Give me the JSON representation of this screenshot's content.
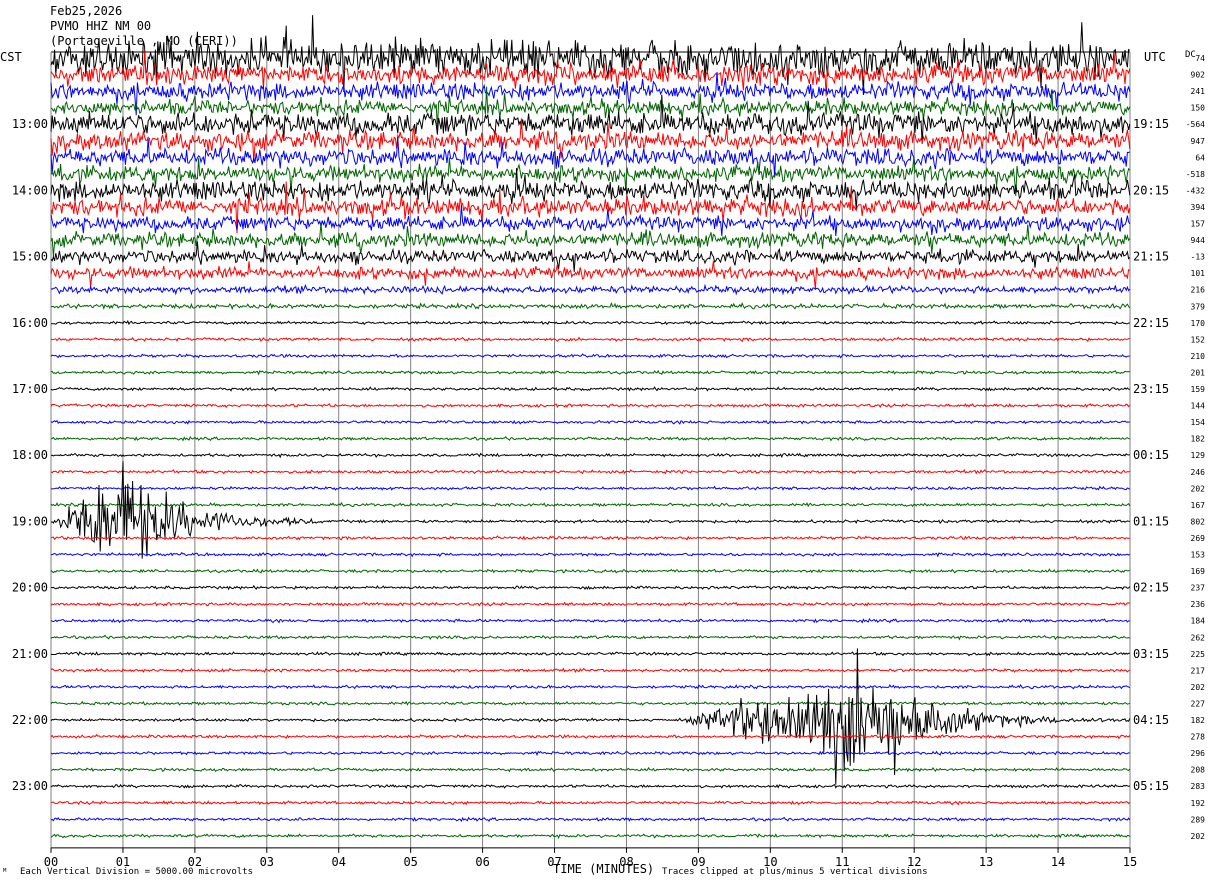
{
  "header": {
    "date": "Feb25,2026",
    "station": "PVMO HHZ NM 00",
    "location": "(Portageville , MO (CERI))"
  },
  "left_tz": "CST",
  "right_tz": "UTC",
  "dc_label": "DC",
  "footer": {
    "scale_note": "Each Vertical Division = 5000.00 microvolts",
    "clip_note": "Traces clipped at plus/minus 5 vertical divisions",
    "corner_mark": "ᴹ"
  },
  "colors": {
    "trace_cycle": [
      "#000000",
      "#ff0000",
      "#0000ff",
      "#006400"
    ],
    "grid": "#808080"
  },
  "chart_data": {
    "type": "line",
    "title": "PVMO HHZ NM 00",
    "xlabel": "TIME (MINUTES)",
    "x_ticks": [
      "00",
      "01",
      "02",
      "03",
      "04",
      "05",
      "06",
      "07",
      "08",
      "09",
      "10",
      "11",
      "12",
      "13",
      "14",
      "15"
    ],
    "xlim": [
      0,
      15
    ],
    "rows_per_hour": 4,
    "left_hour_labels": [
      "13:00",
      "14:00",
      "15:00",
      "16:00",
      "17:00",
      "18:00",
      "19:00",
      "20:00",
      "21:00",
      "22:00",
      "23:00"
    ],
    "right_hour_labels": [
      "19:15",
      "20:15",
      "21:15",
      "22:15",
      "23:15",
      "00:15",
      "01:15",
      "02:15",
      "03:15",
      "04:15",
      "05:15"
    ],
    "first_labeled_row": 4,
    "dc_offsets": [
      "74",
      "902",
      "241",
      "150",
      "-564",
      "947",
      "64",
      "-518",
      "-432",
      "394",
      "157",
      "944",
      "-13",
      "101",
      "216",
      "379",
      "170",
      "152",
      "210",
      "201",
      "159",
      "144",
      "154",
      "182",
      "129",
      "246",
      "202",
      "167",
      "802",
      "269",
      "153",
      "169",
      "237",
      "236",
      "184",
      "262",
      "225",
      "217",
      "202",
      "227",
      "182",
      "278",
      "296",
      "208",
      "283",
      "192",
      "289",
      "202"
    ],
    "row_noise": [
      25,
      14,
      12,
      10,
      16,
      13,
      12,
      11,
      14,
      12,
      10,
      10,
      9,
      8,
      5,
      3,
      2,
      2,
      2,
      2,
      2,
      2,
      2,
      2,
      2,
      2,
      2,
      2,
      2,
      2,
      2,
      2,
      2,
      2,
      2,
      2,
      2,
      2,
      2,
      2,
      2,
      2,
      2,
      2,
      2,
      2,
      2,
      2
    ],
    "events": [
      {
        "row": 28,
        "start_min": 0.0,
        "peak_min": 1.0,
        "end_min": 3.7,
        "amplitude": 80
      },
      {
        "row": 40,
        "start_min": 8.8,
        "peak_min": 11.5,
        "end_min": 15.0,
        "amplitude": 85
      }
    ]
  }
}
